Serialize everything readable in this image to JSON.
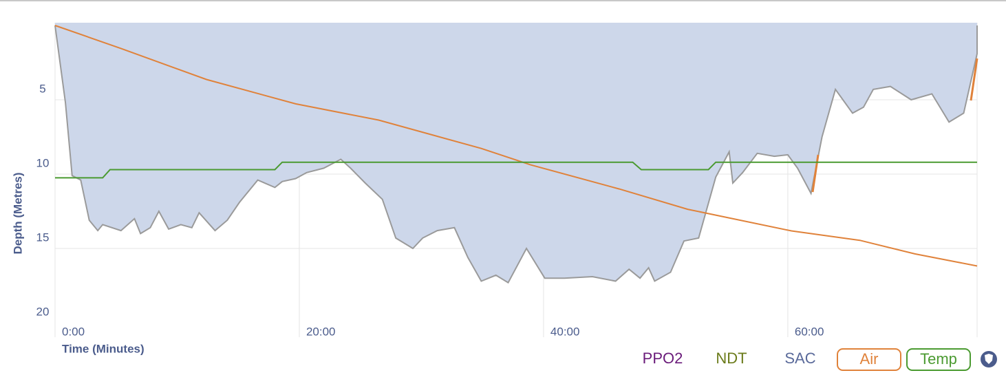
{
  "chart_data": {
    "type": "dive-profile",
    "ylabel": "Depth (Metres)",
    "xlabel": "Time (Minutes)",
    "ylim": [
      0,
      20
    ],
    "yticks": [
      5,
      10,
      15,
      20
    ],
    "yinverted": true,
    "xlim": [
      0,
      75.5
    ],
    "xticks": [
      {
        "value": 0,
        "label": "0:00"
      },
      {
        "value": 20,
        "label": "20:00"
      },
      {
        "value": 40,
        "label": "40:00"
      },
      {
        "value": 60,
        "label": "60:00"
      }
    ],
    "y2lim": [
      0,
      220
    ],
    "y3lim": [
      0,
      40
    ],
    "grid": true,
    "depth": {
      "color": "#cdd7ea",
      "line_color": "#9a9a9a",
      "x": [
        0,
        0.85,
        1.4,
        2.1,
        2.8,
        3.5,
        3.9,
        5.4,
        6.5,
        7.0,
        7.8,
        8.5,
        9.3,
        10.3,
        11.2,
        11.8,
        13.1,
        14.1,
        15.1,
        16.6,
        18.0,
        18.6,
        19.7,
        20.6,
        22.0,
        23.4,
        24.2,
        25.4,
        26.8,
        27.9,
        29.3,
        30.1,
        31.3,
        32.7,
        33.8,
        34.9,
        36.1,
        37.1,
        38.6,
        40.1,
        41.7,
        44.0,
        45.9,
        47.0,
        47.9,
        48.6,
        49.1,
        50.4,
        51.5,
        52.7,
        54.1,
        55.2,
        55.5,
        56.3,
        57.5,
        58.9,
        60.0,
        60.8,
        61.9,
        62.8,
        63.9,
        65.3,
        66.2,
        67.0,
        68.4,
        70.1,
        71.8,
        73.2,
        74.4,
        75.5,
        75.5
      ],
      "values": [
        0,
        5.2,
        10.1,
        10.4,
        13.1,
        13.8,
        13.4,
        13.8,
        13.0,
        14.0,
        13.6,
        12.5,
        13.7,
        13.4,
        13.6,
        12.6,
        13.8,
        13.1,
        11.9,
        10.4,
        10.9,
        10.5,
        10.3,
        9.9,
        9.6,
        9.0,
        9.6,
        10.6,
        11.7,
        14.3,
        15.0,
        14.3,
        13.8,
        13.6,
        15.6,
        17.2,
        16.8,
        17.3,
        15.0,
        17.0,
        17.0,
        16.9,
        17.2,
        16.4,
        17.0,
        16.3,
        17.2,
        16.6,
        14.5,
        14.3,
        10.2,
        8.5,
        10.6,
        9.9,
        8.6,
        8.8,
        8.7,
        9.6,
        11.3,
        7.5,
        4.3,
        5.9,
        5.5,
        4.3,
        4.1,
        5.0,
        4.6,
        6.5,
        5.9,
        1.9,
        0
      ]
    },
    "series": [
      {
        "name": "Air",
        "color": "#e0823a",
        "axis": "y2",
        "x": [
          0,
          5.4,
          12.4,
          19.7,
          26.5,
          34.9,
          38.9,
          46.2,
          51.8,
          60.3,
          65.9,
          70.4,
          73.8,
          75.5
        ],
        "values": [
          220,
          203,
          180,
          162,
          150,
          129,
          117,
          99,
          84,
          68,
          61,
          51,
          45,
          42
        ]
      },
      {
        "name": "Temp",
        "color": "#4a9a30",
        "axis": "y3",
        "x": [
          0,
          3.9,
          4.5,
          18.0,
          18.6,
          47.3,
          48.0,
          53.5,
          54.1,
          75.5
        ],
        "values": [
          19.5,
          19.5,
          20.6,
          20.6,
          21.6,
          21.6,
          20.6,
          20.6,
          21.6,
          21.6
        ]
      }
    ],
    "buttons": [
      {
        "label": "PPO2",
        "color": "#6a1b7a"
      },
      {
        "label": "NDT",
        "color": "#6b7b1a"
      },
      {
        "label": "SAC",
        "color": "#5a6a9a"
      }
    ]
  }
}
